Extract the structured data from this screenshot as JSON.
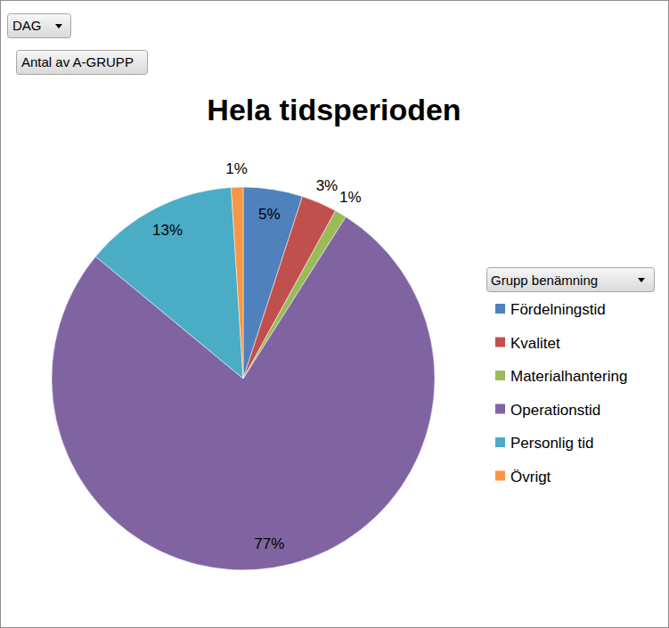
{
  "chart_data": {
    "type": "pie",
    "title": "Hela tidsperioden",
    "buttons": [
      "DAG",
      "Antal av A-GRUPP"
    ],
    "legend_title": "Grupp benämning",
    "categories": [
      "Fördelningstid",
      "Kvalitet",
      "Materialhantering",
      "Operationstid",
      "Personlig tid",
      "Övrigt"
    ],
    "values": [
      5,
      3,
      1,
      77,
      13,
      1
    ],
    "value_labels": [
      "5%",
      "3%",
      "1%",
      "77%",
      "13%",
      "1%"
    ],
    "colors": [
      "#4f81bd",
      "#c0504d",
      "#9bbb59",
      "#8064a2",
      "#4bacc6",
      "#f79646"
    ],
    "data_labels": true,
    "legend": "right"
  }
}
